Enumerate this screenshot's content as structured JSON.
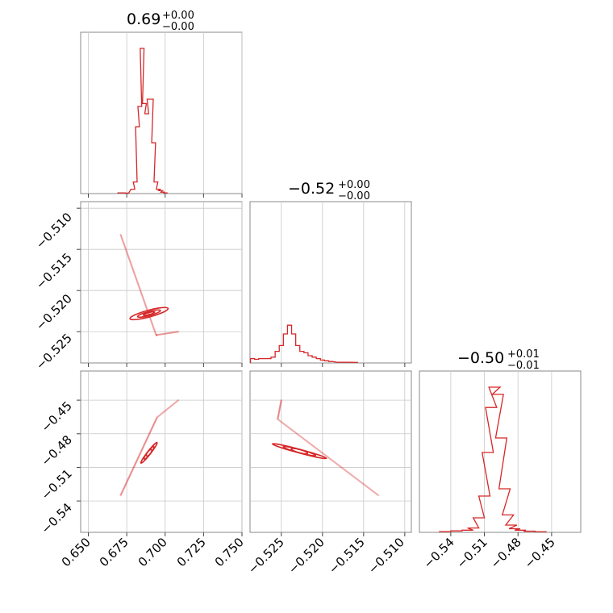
{
  "chart_data": {
    "type": "corner",
    "color": "#d62728",
    "grid": true,
    "parameters": [
      {
        "range": [
          0.645,
          0.75
        ],
        "ticks": [
          0.65,
          0.675,
          0.7,
          0.725,
          0.75
        ]
      },
      {
        "range": [
          -0.5288,
          -0.5092
        ],
        "ticks": [
          -0.525,
          -0.52,
          -0.515,
          -0.51
        ]
      },
      {
        "range": [
          -0.568,
          -0.424
        ],
        "ticks": [
          -0.54,
          -0.51,
          -0.48,
          -0.45
        ]
      }
    ],
    "tick_labels": {
      "p0": [
        "0.650",
        "0.675",
        "0.700",
        "0.725",
        "0.750"
      ],
      "p1": [
        "−0.525",
        "−0.520",
        "−0.515",
        "−0.510"
      ],
      "p2": [
        "−0.54",
        "−0.51",
        "−0.48",
        "−0.45"
      ]
    },
    "titles": [
      {
        "value": "0.69",
        "plus": "+0.00",
        "minus": "−0.00"
      },
      {
        "value": "−0.52",
        "plus": "+0.00",
        "minus": "−0.00"
      },
      {
        "value": "−0.50",
        "plus": "+0.01",
        "minus": "−0.01"
      }
    ],
    "histograms": [
      {
        "param": 0,
        "bins": [
          [
            0.6705,
            0.005
          ],
          [
            0.673,
            0.005
          ],
          [
            0.675,
            0.003
          ],
          [
            0.679,
            0.03
          ],
          [
            0.6805,
            0.08
          ],
          [
            0.682,
            0.46
          ],
          [
            0.6835,
            0.6
          ],
          [
            0.685,
            1.0
          ],
          [
            0.6865,
            0.62
          ],
          [
            0.688,
            0.55
          ],
          [
            0.6895,
            0.65
          ],
          [
            0.691,
            0.65
          ],
          [
            0.6925,
            0.35
          ],
          [
            0.694,
            0.08
          ],
          [
            0.6955,
            0.03
          ],
          [
            0.697,
            0.02
          ],
          [
            0.6985,
            0.01
          ],
          [
            0.7,
            0.005
          ]
        ]
      },
      {
        "param": 1,
        "bins": [
          [
            -0.5285,
            0.03
          ],
          [
            -0.528,
            0.025
          ],
          [
            -0.5275,
            0.03
          ],
          [
            -0.527,
            0.03
          ],
          [
            -0.5265,
            0.03
          ],
          [
            -0.526,
            0.04
          ],
          [
            -0.5255,
            0.08
          ],
          [
            -0.525,
            0.12
          ],
          [
            -0.5245,
            0.2
          ],
          [
            -0.524,
            0.26
          ],
          [
            -0.5235,
            0.2
          ],
          [
            -0.523,
            0.12
          ],
          [
            -0.5225,
            0.08
          ],
          [
            -0.522,
            0.07
          ],
          [
            -0.5215,
            0.05
          ],
          [
            -0.521,
            0.04
          ],
          [
            -0.5205,
            0.03
          ],
          [
            -0.52,
            0.02
          ],
          [
            -0.5195,
            0.015
          ],
          [
            -0.519,
            0.01
          ],
          [
            -0.518,
            0.005
          ],
          [
            -0.517,
            0.005
          ],
          [
            -0.516,
            0.004
          ]
        ]
      },
      {
        "param": 2,
        "bins": [
          [
            -0.545,
            0.005
          ],
          [
            -0.535,
            0.01
          ],
          [
            -0.525,
            0.015
          ],
          [
            -0.52,
            0.03
          ],
          [
            -0.515,
            0.1
          ],
          [
            -0.51,
            0.25
          ],
          [
            -0.507,
            0.55
          ],
          [
            -0.504,
            0.86
          ],
          [
            -0.501,
            1.0
          ],
          [
            -0.498,
            0.95
          ],
          [
            -0.495,
            0.65
          ],
          [
            -0.492,
            0.3
          ],
          [
            -0.489,
            0.12
          ],
          [
            -0.486,
            0.05
          ],
          [
            -0.483,
            0.025
          ],
          [
            -0.478,
            0.015
          ],
          [
            -0.47,
            0.008
          ],
          [
            -0.46,
            0.004
          ]
        ]
      }
    ]
  }
}
